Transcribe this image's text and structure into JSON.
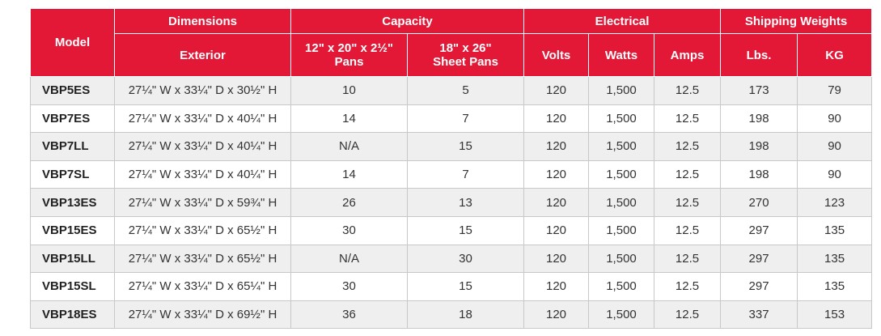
{
  "table": {
    "groups": [
      "Model",
      "Dimensions",
      "Capacity",
      "Electrical",
      "Shipping Weights"
    ],
    "columns": [
      "Exterior",
      "12\" x 20\" x 2½\"\nPans",
      "18\" x 26\"\nSheet Pans",
      "Volts",
      "Watts",
      "Amps",
      "Lbs.",
      "KG"
    ],
    "rows": [
      [
        "VBP5ES",
        "27¼\" W x 33¼\" D x 30½\" H",
        "10",
        "5",
        "120",
        "1,500",
        "12.5",
        "173",
        "79"
      ],
      [
        "VBP7ES",
        "27¼\" W x 33¼\" D x 40¼\" H",
        "14",
        "7",
        "120",
        "1,500",
        "12.5",
        "198",
        "90"
      ],
      [
        "VBP7LL",
        "27¼\" W x 33¼\" D x 40¼\" H",
        "N/A",
        "15",
        "120",
        "1,500",
        "12.5",
        "198",
        "90"
      ],
      [
        "VBP7SL",
        "27¼\" W x 33¼\" D x 40¼\" H",
        "14",
        "7",
        "120",
        "1,500",
        "12.5",
        "198",
        "90"
      ],
      [
        "VBP13ES",
        "27¼\" W x 33¼\" D x 59¾\" H",
        "26",
        "13",
        "120",
        "1,500",
        "12.5",
        "270",
        "123"
      ],
      [
        "VBP15ES",
        "27¼\" W x 33¼\" D x 65½\" H",
        "30",
        "15",
        "120",
        "1,500",
        "12.5",
        "297",
        "135"
      ],
      [
        "VBP15LL",
        "27¼\" W x 33¼\" D x 65½\" H",
        "N/A",
        "30",
        "120",
        "1,500",
        "12.5",
        "297",
        "135"
      ],
      [
        "VBP15SL",
        "27¼\" W x 33¼\" D x 65¼\" H",
        "30",
        "15",
        "120",
        "1,500",
        "12.5",
        "297",
        "135"
      ],
      [
        "VBP18ES",
        "27¼\" W x 33¼\" D x 69½\" H",
        "36",
        "18",
        "120",
        "1,500",
        "12.5",
        "337",
        "153"
      ]
    ]
  }
}
